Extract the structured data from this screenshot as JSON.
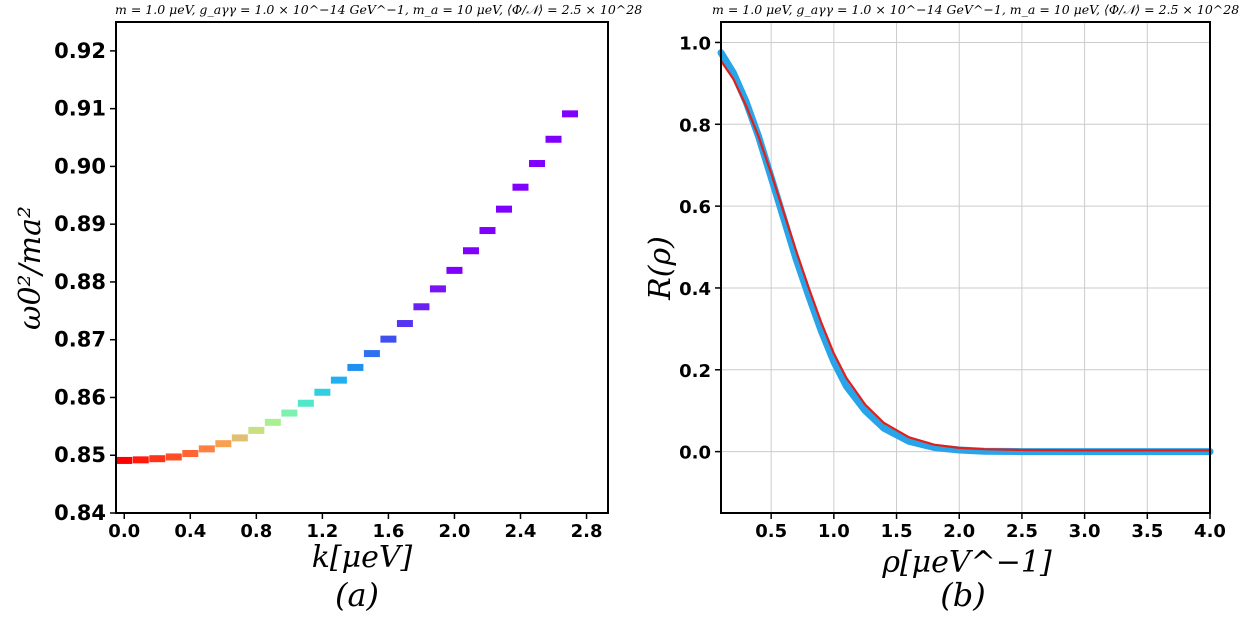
{
  "chart_data": [
    {
      "type": "scatter",
      "title": "m = 1.0 μeV, g_aγγ = 1.0 × 10^−14 GeV^−1, m_a = 10 μeV, ⟨Φ/𝒩⟩ = 2.5 × 10^28",
      "xlabel": "k[μeV]",
      "ylabel": "ω0²/ma²",
      "caption": "(a)",
      "xlim": [
        -0.05,
        2.93
      ],
      "ylim": [
        0.84,
        0.925
      ],
      "xticks": [
        "0.0",
        "0.4",
        "0.8",
        "1.2",
        "1.6",
        "2.0",
        "2.4",
        "2.8"
      ],
      "yticks": [
        "0.84",
        "0.85",
        "0.86",
        "0.87",
        "0.88",
        "0.89",
        "0.90",
        "0.91",
        "0.92"
      ],
      "grid": false,
      "marker": "horizontal dash, rainbow colormap (red → violet)",
      "x": [
        0.0,
        0.1,
        0.2,
        0.3,
        0.4,
        0.5,
        0.6,
        0.7,
        0.8,
        0.9,
        1.0,
        1.1,
        1.2,
        1.3,
        1.4,
        1.5,
        1.6,
        1.7,
        1.8,
        1.9,
        2.0,
        2.1,
        2.2,
        2.3,
        2.4,
        2.5,
        2.6,
        2.7
      ],
      "y": [
        0.8491,
        0.8492,
        0.8494,
        0.8497,
        0.8503,
        0.8511,
        0.852,
        0.853,
        0.8543,
        0.8557,
        0.8573,
        0.859,
        0.8609,
        0.863,
        0.8652,
        0.8676,
        0.8701,
        0.8728,
        0.8757,
        0.8788,
        0.882,
        0.8854,
        0.8889,
        0.8926,
        0.8964,
        0.9005,
        0.9047,
        0.9091
      ],
      "colors": [
        "#ff0000",
        "#ff1a0d",
        "#ff3319",
        "#ff4d26",
        "#ff6633",
        "#ff8040",
        "#f7a050",
        "#e0c070",
        "#c8e080",
        "#a8f090",
        "#80f0b0",
        "#50e8c8",
        "#30d0e0",
        "#20b0f0",
        "#2090f0",
        "#3070f0",
        "#4050f0",
        "#5535f0",
        "#6a22f2",
        "#7a12f4",
        "#8000ff",
        "#8000ff",
        "#8000ff",
        "#8000ff",
        "#8000ff",
        "#8000ff",
        "#8000ff",
        "#8000ff"
      ]
    },
    {
      "type": "line",
      "title": "m = 1.0 μeV, g_aγγ = 1.0 × 10^−14 GeV^−1, m_a = 10 μeV,  ⟨Φ/𝒩⟩ = 2.5 × 10^28",
      "xlabel": "ρ[μeV^−1]",
      "ylabel": "R(ρ)",
      "caption": "(b)",
      "xlim": [
        0.1,
        4.0
      ],
      "ylim": [
        -0.15,
        1.05
      ],
      "xticks": [
        "0.5",
        "1.0",
        "1.5",
        "2.0",
        "2.5",
        "3.0",
        "3.5",
        "4.0"
      ],
      "yticks": [
        "0.0",
        "0.2",
        "0.4",
        "0.6",
        "0.8",
        "1.0"
      ],
      "grid": true,
      "x": [
        0.1,
        0.2,
        0.3,
        0.4,
        0.5,
        0.6,
        0.7,
        0.8,
        0.9,
        1.0,
        1.1,
        1.25,
        1.4,
        1.6,
        1.8,
        2.0,
        2.2,
        2.5,
        3.0,
        3.5,
        4.0
      ],
      "series": [
        {
          "color": "#e0201a",
          "y": [
            0.955,
            0.91,
            0.845,
            0.77,
            0.68,
            0.585,
            0.49,
            0.4,
            0.315,
            0.24,
            0.18,
            0.115,
            0.07,
            0.035,
            0.017,
            0.009,
            0.006,
            0.004,
            0.003,
            0.003,
            0.003
          ]
        },
        {
          "color": "#2aa4e8",
          "y": [
            0.975,
            0.925,
            0.855,
            0.77,
            0.67,
            0.57,
            0.47,
            0.38,
            0.295,
            0.22,
            0.16,
            0.1,
            0.057,
            0.025,
            0.01,
            0.004,
            0.001,
            0.0,
            0.0,
            0.0,
            0.0
          ]
        }
      ]
    }
  ]
}
